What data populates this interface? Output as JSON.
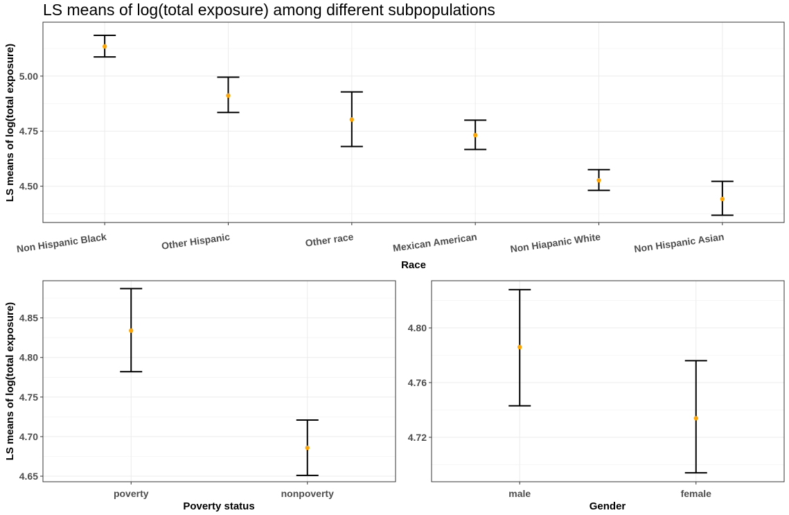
{
  "figure": {
    "title": "LS means of log(total exposure) among different subpopulations"
  },
  "chart_data": [
    {
      "type": "errorbar",
      "name": "race",
      "title": "LS means of log(total exposure) among different subpopulations",
      "xlabel": "Race",
      "ylabel": "LS means of log(total exposure)",
      "categories": [
        "Non Hispanic Black",
        "Other Hispanic",
        "Other race",
        "Mexican American",
        "Non Hiapanic White",
        "Non Hispanic Asian"
      ],
      "mean": [
        5.135,
        4.912,
        4.803,
        4.732,
        4.527,
        4.442
      ],
      "lower": [
        5.087,
        4.835,
        4.68,
        4.667,
        4.481,
        4.368
      ],
      "upper": [
        5.185,
        4.995,
        4.928,
        4.8,
        4.575,
        4.522
      ],
      "ylim": [
        4.335,
        5.245
      ],
      "yticks": [
        4.5,
        4.75,
        5.0
      ],
      "ytick_labels": [
        "4.50",
        "4.75",
        "5.00"
      ],
      "point_color": "#FFA500",
      "grid": true
    },
    {
      "type": "errorbar",
      "name": "poverty",
      "xlabel": "Poverty status",
      "ylabel": "LS means of log(total exposure)",
      "categories": [
        "poverty",
        "nonpoverty"
      ],
      "mean": [
        4.834,
        4.686
      ],
      "lower": [
        4.782,
        4.651
      ],
      "upper": [
        4.887,
        4.721
      ],
      "ylim": [
        4.643,
        4.897
      ],
      "yticks": [
        4.65,
        4.7,
        4.75,
        4.8,
        4.85
      ],
      "ytick_labels": [
        "4.65",
        "4.70",
        "4.75",
        "4.80",
        "4.85"
      ],
      "point_color": "#FFA500",
      "grid": true
    },
    {
      "type": "errorbar",
      "name": "gender",
      "xlabel": "Gender",
      "ylabel": "",
      "categories": [
        "male",
        "female"
      ],
      "mean": [
        4.786,
        4.734
      ],
      "lower": [
        4.743,
        4.694
      ],
      "upper": [
        4.828,
        4.776
      ],
      "ylim": [
        4.6875,
        4.8345
      ],
      "yticks": [
        4.72,
        4.76,
        4.8
      ],
      "ytick_labels": [
        "4.72",
        "4.76",
        "4.80"
      ],
      "point_color": "#FFA500",
      "grid": true
    }
  ]
}
